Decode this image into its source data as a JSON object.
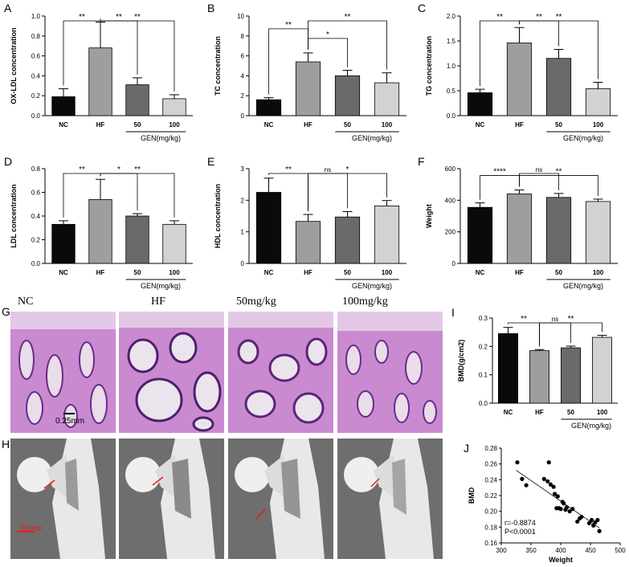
{
  "panels": {
    "A": "A",
    "B": "B",
    "C": "C",
    "D": "D",
    "E": "E",
    "F": "F",
    "G": "G",
    "H": "H",
    "I": "I",
    "J": "J"
  },
  "image_labels": [
    "NC",
    "HF",
    "50mg/kg",
    "100mg/kg"
  ],
  "hist_scale": "0.25mm",
  "ct_scale": "50mm",
  "colors": {
    "NC": "#0a0a0a",
    "HF": "#9e9e9e",
    "50": "#6a6a6a",
    "100": "#d2d2d2"
  },
  "chart_data": [
    {
      "id": "A",
      "type": "bar",
      "ylabel": "OX-LDL concentration",
      "categories": [
        "NC",
        "HF",
        "50",
        "100"
      ],
      "values": [
        0.19,
        0.68,
        0.31,
        0.17
      ],
      "errors": [
        0.08,
        0.26,
        0.07,
        0.04
      ],
      "ylim": [
        0,
        1.0
      ],
      "yticks": [
        "0.0",
        "0.2",
        "0.4",
        "0.6",
        "0.8",
        "1.0"
      ],
      "group_label": "GEN(mg/kg)",
      "sig": [
        {
          "a": 0,
          "b": 1,
          "t": "**",
          "lvl": 2
        },
        {
          "a": 1,
          "b": 2,
          "t": "**",
          "lvl": 1
        },
        {
          "a": 1,
          "b": 3,
          "t": "**",
          "lvl": 3
        }
      ]
    },
    {
      "id": "B",
      "type": "bar",
      "ylabel": "TC concentration",
      "categories": [
        "NC",
        "HF",
        "50",
        "100"
      ],
      "values": [
        1.6,
        5.4,
        4.0,
        3.3
      ],
      "errors": [
        0.2,
        0.9,
        0.55,
        1.0
      ],
      "ylim": [
        0,
        10
      ],
      "yticks": [
        "0",
        "2",
        "4",
        "6",
        "8",
        "10"
      ],
      "group_label": "GEN(mg/kg)",
      "sig": [
        {
          "a": 0,
          "b": 1,
          "t": "**",
          "lvl": 2
        },
        {
          "a": 1,
          "b": 2,
          "t": "*",
          "lvl": 1
        },
        {
          "a": 1,
          "b": 3,
          "t": "**",
          "lvl": 3
        }
      ]
    },
    {
      "id": "C",
      "type": "bar",
      "ylabel": "TG concentration",
      "categories": [
        "NC",
        "HF",
        "50",
        "100"
      ],
      "values": [
        0.46,
        1.46,
        1.15,
        0.54
      ],
      "errors": [
        0.07,
        0.31,
        0.18,
        0.13
      ],
      "ylim": [
        0,
        2.0
      ],
      "yticks": [
        "0.0",
        "0.5",
        "1.0",
        "1.5",
        "2.0"
      ],
      "group_label": "GEN(mg/kg)",
      "sig": [
        {
          "a": 0,
          "b": 1,
          "t": "**",
          "lvl": 2
        },
        {
          "a": 1,
          "b": 2,
          "t": "**",
          "lvl": 1
        },
        {
          "a": 1,
          "b": 3,
          "t": "**",
          "lvl": 3
        }
      ]
    },
    {
      "id": "D",
      "type": "bar",
      "ylabel": "LDL concentration",
      "categories": [
        "NC",
        "HF",
        "50",
        "100"
      ],
      "values": [
        0.33,
        0.54,
        0.4,
        0.33
      ],
      "errors": [
        0.03,
        0.17,
        0.02,
        0.03
      ],
      "ylim": [
        0,
        0.8
      ],
      "yticks": [
        "0.0",
        "0.2",
        "0.4",
        "0.6",
        "0.8"
      ],
      "group_label": "GEN(mg/kg)",
      "sig": [
        {
          "a": 0,
          "b": 1,
          "t": "**",
          "lvl": 2
        },
        {
          "a": 1,
          "b": 2,
          "t": "*",
          "lvl": 1
        },
        {
          "a": 1,
          "b": 3,
          "t": "**",
          "lvl": 3
        }
      ]
    },
    {
      "id": "E",
      "type": "bar",
      "ylabel": "HDL concentration",
      "categories": [
        "NC",
        "HF",
        "50",
        "100"
      ],
      "values": [
        2.25,
        1.33,
        1.47,
        1.82
      ],
      "errors": [
        0.45,
        0.22,
        0.17,
        0.17
      ],
      "ylim": [
        0,
        3
      ],
      "yticks": [
        "0",
        "1",
        "2",
        "3"
      ],
      "group_label": "GEN(mg/kg)",
      "sig": [
        {
          "a": 0,
          "b": 1,
          "t": "**",
          "lvl": 2
        },
        {
          "a": 1,
          "b": 2,
          "t": "ns",
          "lvl": 1
        },
        {
          "a": 1,
          "b": 3,
          "t": "*",
          "lvl": 1.3
        }
      ]
    },
    {
      "id": "F",
      "type": "bar",
      "ylabel": "Weight",
      "categories": [
        "NC",
        "HF",
        "50",
        "100"
      ],
      "values": [
        355,
        440,
        418,
        392
      ],
      "errors": [
        28,
        25,
        25,
        15
      ],
      "ylim": [
        0,
        600
      ],
      "yticks": [
        "0",
        "200",
        "400",
        "600"
      ],
      "group_label": "GEN(mg/kg)",
      "sig": [
        {
          "a": 0,
          "b": 1,
          "t": "****",
          "lvl": 1
        },
        {
          "a": 1,
          "b": 2,
          "t": "ns",
          "lvl": 2
        },
        {
          "a": 1,
          "b": 3,
          "t": "**",
          "lvl": 1
        }
      ]
    },
    {
      "id": "I",
      "type": "bar",
      "ylabel": "BMD(g/cm2)",
      "categories": [
        "NC",
        "HF",
        "50",
        "100"
      ],
      "values": [
        0.245,
        0.185,
        0.195,
        0.232
      ],
      "errors": [
        0.022,
        0.004,
        0.006,
        0.007
      ],
      "ylim": [
        0,
        0.3
      ],
      "yticks": [
        "0.0",
        "0.1",
        "0.2",
        "0.3"
      ],
      "group_label": "GEN(mg/kg)",
      "sig": [
        {
          "a": 0,
          "b": 1,
          "t": "**",
          "lvl": 2
        },
        {
          "a": 1,
          "b": 2,
          "t": "ns",
          "lvl": 1
        },
        {
          "a": 1,
          "b": 3,
          "t": "**",
          "lvl": 1.4
        }
      ]
    },
    {
      "id": "J",
      "type": "scatter",
      "xlabel": "Weight",
      "ylabel": "BMD",
      "xlim": [
        300,
        500
      ],
      "ylim": [
        0.16,
        0.28
      ],
      "xticks": [
        "300",
        "350",
        "400",
        "450",
        "500"
      ],
      "yticks": [
        "0.16",
        "0.18",
        "0.20",
        "0.22",
        "0.24",
        "0.26",
        "0.28"
      ],
      "annotation": [
        "r=-0.8874",
        "P<0.0001"
      ],
      "fit": {
        "x": [
          325,
          465
        ],
        "y": [
          0.252,
          0.179
        ]
      },
      "points": [
        [
          327,
          0.262
        ],
        [
          335,
          0.241
        ],
        [
          342,
          0.233
        ],
        [
          372,
          0.241
        ],
        [
          378,
          0.238
        ],
        [
          380,
          0.262
        ],
        [
          383,
          0.234
        ],
        [
          388,
          0.231
        ],
        [
          390,
          0.222
        ],
        [
          393,
          0.204
        ],
        [
          395,
          0.219
        ],
        [
          397,
          0.204
        ],
        [
          400,
          0.203
        ],
        [
          403,
          0.212
        ],
        [
          405,
          0.21
        ],
        [
          408,
          0.202
        ],
        [
          410,
          0.205
        ],
        [
          415,
          0.2
        ],
        [
          420,
          0.203
        ],
        [
          428,
          0.187
        ],
        [
          432,
          0.191
        ],
        [
          435,
          0.193
        ],
        [
          448,
          0.185
        ],
        [
          452,
          0.189
        ],
        [
          455,
          0.182
        ],
        [
          458,
          0.186
        ],
        [
          462,
          0.189
        ],
        [
          465,
          0.175
        ]
      ]
    }
  ]
}
